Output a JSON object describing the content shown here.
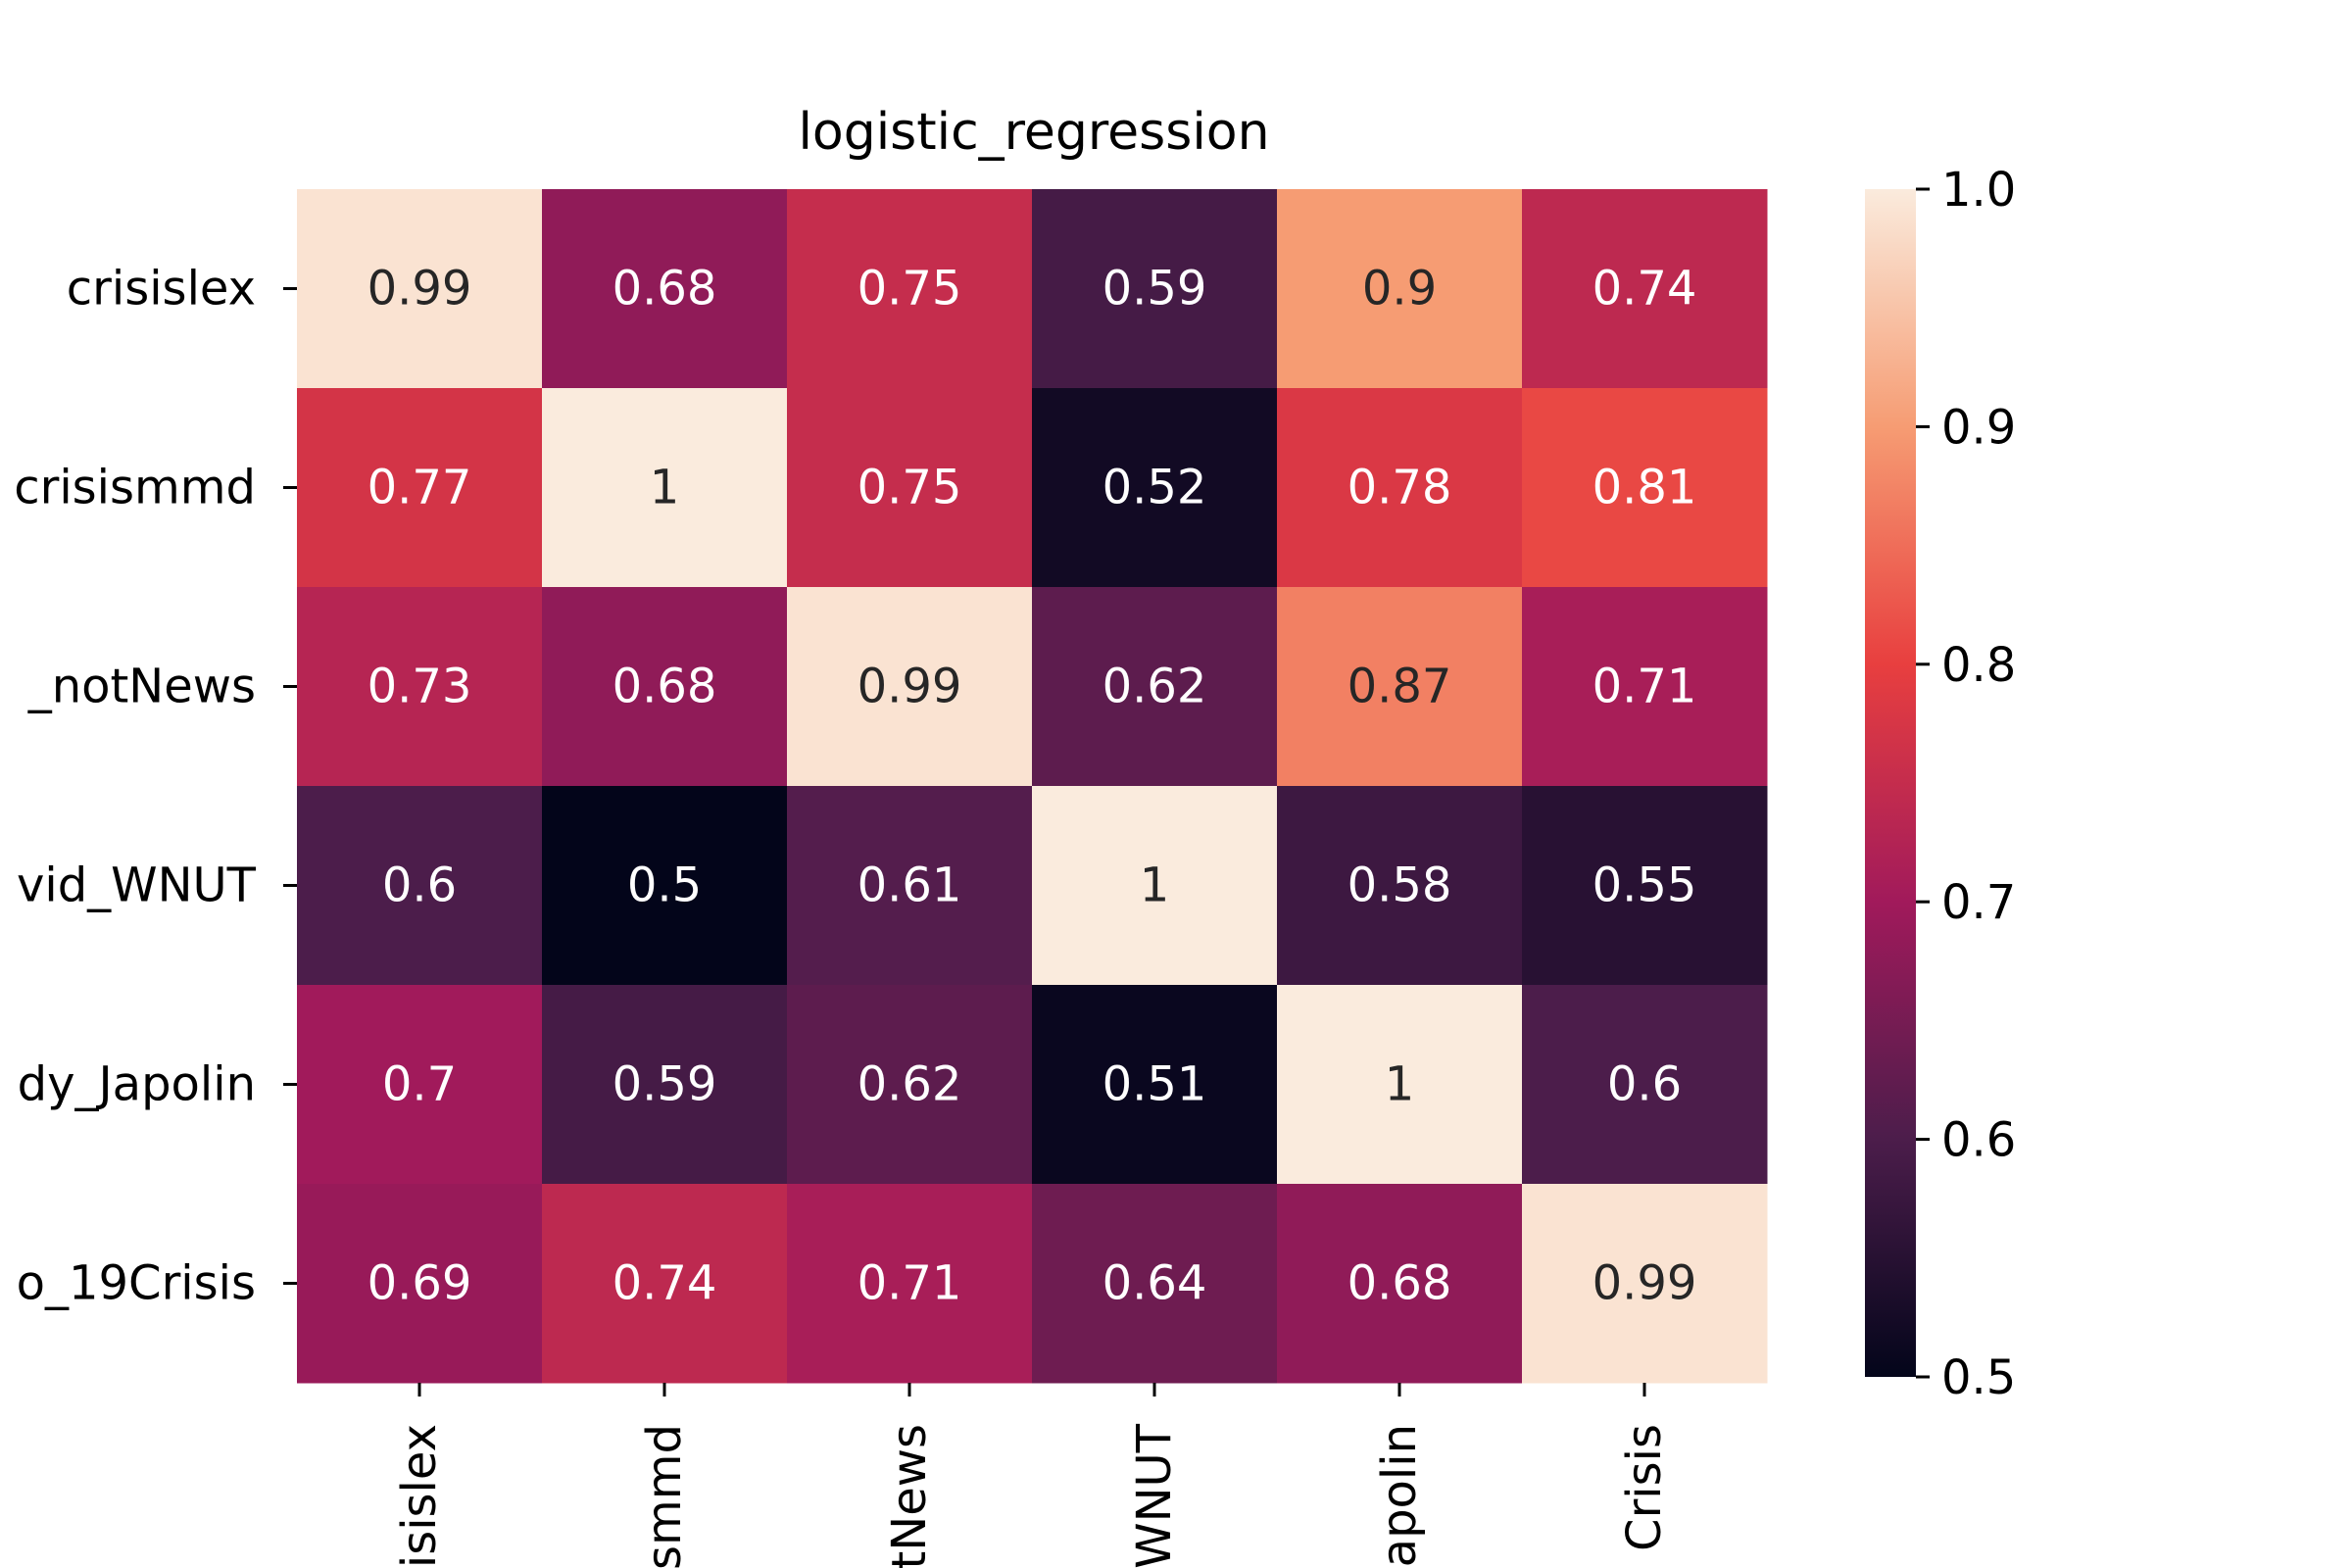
{
  "chart_data": {
    "type": "heatmap",
    "title": "logistic_regression",
    "row_labels": [
      "crisislex",
      "crisismmd",
      "_notNews",
      "vid_WNUT",
      "dy_Japolin",
      "o_19Crisis"
    ],
    "col_labels": [
      "isislex",
      "smmd",
      "tNews",
      "WNUT",
      "apolin",
      "Crisis"
    ],
    "values": [
      [
        0.99,
        0.68,
        0.75,
        0.59,
        0.9,
        0.74
      ],
      [
        0.77,
        1,
        0.75,
        0.52,
        0.78,
        0.81
      ],
      [
        0.73,
        0.68,
        0.99,
        0.62,
        0.87,
        0.71
      ],
      [
        0.6,
        0.5,
        0.61,
        1,
        0.58,
        0.55
      ],
      [
        0.7,
        0.59,
        0.62,
        0.51,
        1,
        0.6
      ],
      [
        0.69,
        0.74,
        0.71,
        0.64,
        0.68,
        0.99
      ]
    ],
    "annotations": [
      [
        "0.99",
        "0.68",
        "0.75",
        "0.59",
        "0.9",
        "0.74"
      ],
      [
        "0.77",
        "1",
        "0.75",
        "0.52",
        "0.78",
        "0.81"
      ],
      [
        "0.73",
        "0.68",
        "0.99",
        "0.62",
        "0.87",
        "0.71"
      ],
      [
        "0.6",
        "0.5",
        "0.61",
        "1",
        "0.58",
        "0.55"
      ],
      [
        "0.7",
        "0.59",
        "0.62",
        "0.51",
        "1",
        "0.6"
      ],
      [
        "0.69",
        "0.74",
        "0.71",
        "0.64",
        "0.68",
        "0.99"
      ]
    ],
    "colorbar": {
      "range": [
        0.5,
        1.0
      ],
      "ticks": [
        0.5,
        0.6,
        0.7,
        0.8,
        0.9,
        1.0
      ],
      "tick_labels": [
        "0.5",
        "0.6",
        "0.7",
        "0.8",
        "0.9",
        "1.0"
      ]
    },
    "colormap": "rocket",
    "colormap_stops": [
      "#03051a",
      "#4c1d4b",
      "#a11a5b",
      "#e83f3f",
      "#f69c73",
      "#faebdd"
    ]
  }
}
